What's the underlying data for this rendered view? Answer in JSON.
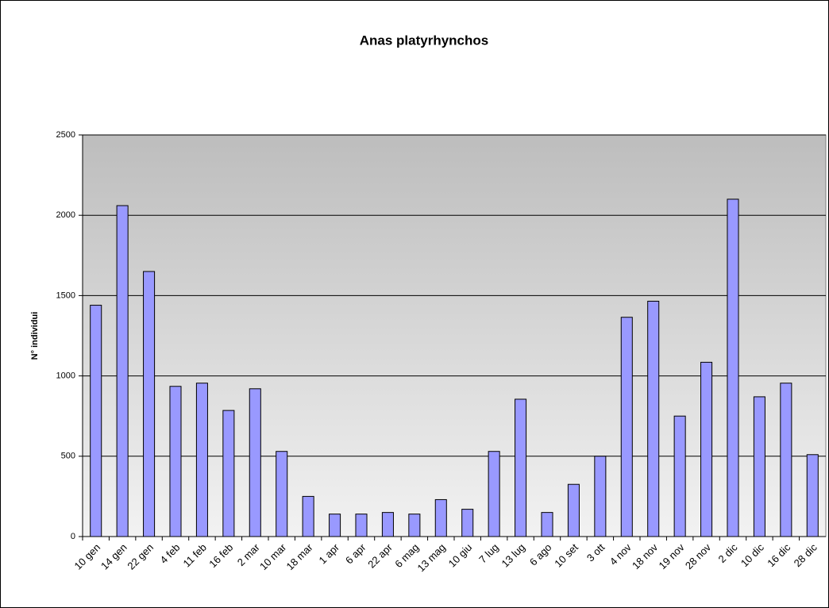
{
  "chart_data": {
    "type": "bar",
    "title": "Anas platyrhynchos",
    "y_label": "N° individui",
    "categories": [
      "10 gen",
      "14 gen",
      "22 gen",
      "4 feb",
      "11 feb",
      "16 feb",
      "2 mar",
      "10 mar",
      "18 mar",
      "1 apr",
      "6 apr",
      "22 apr",
      "6 mag",
      "13 mag",
      "10 giu",
      "7 lug",
      "13 lug",
      "6 ago",
      "10 set",
      "3 ott",
      "4 nov",
      "18 nov",
      "19 nov",
      "28 nov",
      "2 dic",
      "10 dic",
      "16 dic",
      "28 dic"
    ],
    "values": [
      1440,
      2060,
      1650,
      935,
      955,
      785,
      920,
      530,
      250,
      140,
      140,
      150,
      140,
      230,
      170,
      530,
      855,
      150,
      325,
      500,
      1365,
      1465,
      750,
      1085,
      2100,
      870,
      955,
      510
    ],
    "color": "#9999ff",
    "ylim": [
      0,
      2500
    ],
    "yticks": [
      0,
      500,
      1000,
      1500,
      2000,
      2500
    ],
    "grid": true
  }
}
